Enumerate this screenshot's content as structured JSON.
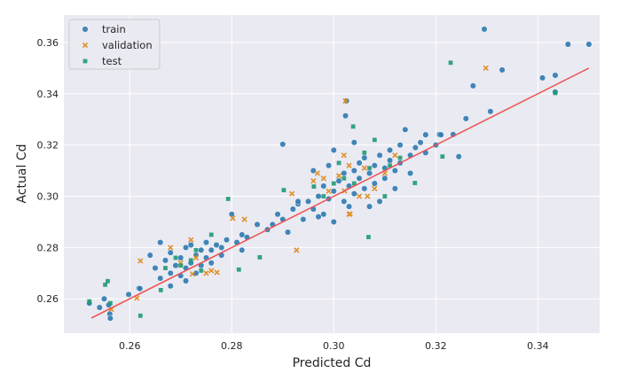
{
  "chart_data": {
    "type": "scatter",
    "xlabel": "Predicted Cd",
    "ylabel": "Actual Cd",
    "xlim": [
      0.2471,
      0.3521
    ],
    "ylim": [
      0.2466,
      0.3707
    ],
    "xticks": [
      "0.26",
      "0.28",
      "0.30",
      "0.32",
      "0.34"
    ],
    "xtick_values": [
      0.26,
      0.28,
      0.3,
      0.32,
      0.34
    ],
    "yticks": [
      "0.26",
      "0.28",
      "0.30",
      "0.32",
      "0.34",
      "0.36"
    ],
    "ytick_values": [
      0.26,
      0.28,
      0.3,
      0.32,
      0.34,
      0.36
    ],
    "grid": true,
    "legend_placement": "top-left",
    "reference_line": {
      "x": [
        0.2525,
        0.35
      ],
      "y": [
        0.2525,
        0.35
      ],
      "color": "#ee5050"
    },
    "series": [
      {
        "name": "train",
        "marker": "circle",
        "color": "#2f7ab0",
        "points": [
          [
            0.3295,
            0.3652
          ],
          [
            0.3459,
            0.3593
          ],
          [
            0.35,
            0.3593
          ],
          [
            0.333,
            0.3493
          ],
          [
            0.3409,
            0.3462
          ],
          [
            0.3434,
            0.3472
          ],
          [
            0.3307,
            0.3331
          ],
          [
            0.3273,
            0.3431
          ],
          [
            0.3259,
            0.3303
          ],
          [
            0.3245,
            0.3155
          ],
          [
            0.3434,
            0.3407
          ],
          [
            0.3025,
            0.3372
          ],
          [
            0.3023,
            0.3314
          ],
          [
            0.29,
            0.3203
          ],
          [
            0.3234,
            0.3241
          ],
          [
            0.3207,
            0.3241
          ],
          [
            0.2521,
            0.2583
          ],
          [
            0.2541,
            0.2566
          ],
          [
            0.255,
            0.26
          ],
          [
            0.2559,
            0.2576
          ],
          [
            0.2561,
            0.2541
          ],
          [
            0.2562,
            0.2524
          ],
          [
            0.2598,
            0.2617
          ],
          [
            0.2618,
            0.2641
          ],
          [
            0.265,
            0.272
          ],
          [
            0.266,
            0.268
          ],
          [
            0.267,
            0.275
          ],
          [
            0.268,
            0.27
          ],
          [
            0.268,
            0.278
          ],
          [
            0.269,
            0.273
          ],
          [
            0.27,
            0.276
          ],
          [
            0.27,
            0.269
          ],
          [
            0.271,
            0.28
          ],
          [
            0.271,
            0.272
          ],
          [
            0.272,
            0.274
          ],
          [
            0.272,
            0.281
          ],
          [
            0.273,
            0.277
          ],
          [
            0.273,
            0.27
          ],
          [
            0.274,
            0.279
          ],
          [
            0.274,
            0.273
          ],
          [
            0.275,
            0.276
          ],
          [
            0.275,
            0.282
          ],
          [
            0.276,
            0.274
          ],
          [
            0.276,
            0.279
          ],
          [
            0.277,
            0.281
          ],
          [
            0.278,
            0.28
          ],
          [
            0.278,
            0.277
          ],
          [
            0.279,
            0.283
          ],
          [
            0.28,
            0.293
          ],
          [
            0.281,
            0.282
          ],
          [
            0.282,
            0.285
          ],
          [
            0.283,
            0.284
          ],
          [
            0.285,
            0.289
          ],
          [
            0.287,
            0.287
          ],
          [
            0.288,
            0.289
          ],
          [
            0.289,
            0.293
          ],
          [
            0.29,
            0.291
          ],
          [
            0.291,
            0.286
          ],
          [
            0.292,
            0.295
          ],
          [
            0.293,
            0.297
          ],
          [
            0.294,
            0.291
          ],
          [
            0.295,
            0.298
          ],
          [
            0.296,
            0.295
          ],
          [
            0.297,
            0.3
          ],
          [
            0.298,
            0.293
          ],
          [
            0.298,
            0.304
          ],
          [
            0.299,
            0.299
          ],
          [
            0.3,
            0.302
          ],
          [
            0.3,
            0.29
          ],
          [
            0.301,
            0.306
          ],
          [
            0.302,
            0.298
          ],
          [
            0.302,
            0.309
          ],
          [
            0.303,
            0.304
          ],
          [
            0.303,
            0.296
          ],
          [
            0.304,
            0.31
          ],
          [
            0.304,
            0.301
          ],
          [
            0.305,
            0.307
          ],
          [
            0.305,
            0.313
          ],
          [
            0.306,
            0.303
          ],
          [
            0.306,
            0.315
          ],
          [
            0.307,
            0.309
          ],
          [
            0.307,
            0.296
          ],
          [
            0.308,
            0.312
          ],
          [
            0.308,
            0.305
          ],
          [
            0.309,
            0.316
          ],
          [
            0.309,
            0.298
          ],
          [
            0.31,
            0.311
          ],
          [
            0.31,
            0.307
          ],
          [
            0.311,
            0.314
          ],
          [
            0.311,
            0.318
          ],
          [
            0.312,
            0.303
          ],
          [
            0.312,
            0.31
          ],
          [
            0.313,
            0.32
          ],
          [
            0.313,
            0.313
          ],
          [
            0.314,
            0.326
          ],
          [
            0.315,
            0.316
          ],
          [
            0.315,
            0.309
          ],
          [
            0.316,
            0.319
          ],
          [
            0.317,
            0.321
          ],
          [
            0.318,
            0.317
          ],
          [
            0.318,
            0.324
          ],
          [
            0.32,
            0.32
          ],
          [
            0.321,
            0.324
          ],
          [
            0.304,
            0.321
          ],
          [
            0.3,
            0.318
          ],
          [
            0.296,
            0.31
          ],
          [
            0.293,
            0.298
          ],
          [
            0.297,
            0.292
          ],
          [
            0.299,
            0.312
          ],
          [
            0.282,
            0.279
          ],
          [
            0.268,
            0.265
          ],
          [
            0.264,
            0.277
          ],
          [
            0.266,
            0.282
          ],
          [
            0.271,
            0.267
          ],
          [
            0.262,
            0.264
          ]
        ]
      },
      {
        "name": "validation",
        "marker": "x",
        "color": "#e0902a",
        "points": [
          [
            0.3298,
            0.35
          ],
          [
            0.3023,
            0.3372
          ],
          [
            0.2621,
            0.2748
          ],
          [
            0.2614,
            0.2603
          ],
          [
            0.2564,
            0.2559
          ],
          [
            0.2802,
            0.2914
          ],
          [
            0.2825,
            0.291
          ],
          [
            0.2927,
            0.279
          ],
          [
            0.2918,
            0.301
          ],
          [
            0.2968,
            0.309
          ],
          [
            0.3021,
            0.3021
          ],
          [
            0.3066,
            0.3
          ],
          [
            0.3032,
            0.2931
          ],
          [
            0.2771,
            0.2703
          ],
          [
            0.2723,
            0.2697
          ],
          [
            0.268,
            0.28
          ],
          [
            0.27,
            0.274
          ],
          [
            0.272,
            0.283
          ],
          [
            0.273,
            0.276
          ],
          [
            0.275,
            0.27
          ],
          [
            0.276,
            0.271
          ],
          [
            0.299,
            0.302
          ],
          [
            0.301,
            0.308
          ],
          [
            0.303,
            0.312
          ],
          [
            0.305,
            0.3
          ],
          [
            0.306,
            0.311
          ],
          [
            0.308,
            0.303
          ],
          [
            0.31,
            0.309
          ],
          [
            0.312,
            0.316
          ],
          [
            0.302,
            0.316
          ],
          [
            0.298,
            0.307
          ],
          [
            0.303,
            0.293
          ],
          [
            0.296,
            0.306
          ]
        ]
      },
      {
        "name": "test",
        "marker": "square",
        "color": "#1f9a74",
        "points": [
          [
            0.3229,
            0.3521
          ],
          [
            0.3434,
            0.3403
          ],
          [
            0.2557,
            0.2669
          ],
          [
            0.2552,
            0.2655
          ],
          [
            0.2621,
            0.2534
          ],
          [
            0.2521,
            0.259
          ],
          [
            0.2562,
            0.2583
          ],
          [
            0.2661,
            0.2634
          ],
          [
            0.2814,
            0.2714
          ],
          [
            0.2793,
            0.299
          ],
          [
            0.2855,
            0.2762
          ],
          [
            0.3068,
            0.2841
          ],
          [
            0.3038,
            0.3272
          ],
          [
            0.3159,
            0.3052
          ],
          [
            0.3213,
            0.3155
          ],
          [
            0.2902,
            0.3024
          ],
          [
            0.2961,
            0.3038
          ],
          [
            0.267,
            0.272
          ],
          [
            0.269,
            0.276
          ],
          [
            0.27,
            0.273
          ],
          [
            0.272,
            0.275
          ],
          [
            0.274,
            0.271
          ],
          [
            0.276,
            0.285
          ],
          [
            0.273,
            0.279
          ],
          [
            0.298,
            0.3
          ],
          [
            0.3,
            0.305
          ],
          [
            0.302,
            0.307
          ],
          [
            0.304,
            0.305
          ],
          [
            0.306,
            0.317
          ],
          [
            0.308,
            0.322
          ],
          [
            0.311,
            0.312
          ],
          [
            0.313,
            0.315
          ],
          [
            0.307,
            0.311
          ],
          [
            0.31,
            0.3
          ],
          [
            0.301,
            0.313
          ]
        ]
      }
    ]
  }
}
